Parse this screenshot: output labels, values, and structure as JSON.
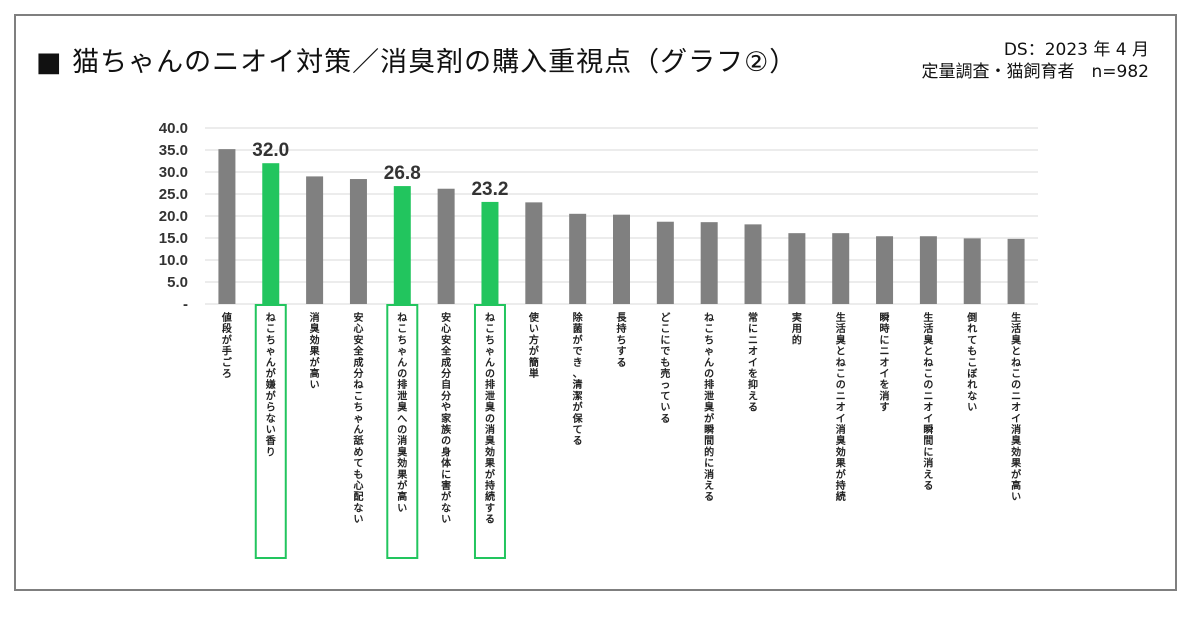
{
  "header": {
    "title": "■ 猫ちゃんのニオイ対策／消臭剤の購入重視点（グラフ②）",
    "source_line1": "DS：2023 年 4 月",
    "source_line2": "定量調査・猫飼育者　n=982"
  },
  "colors": {
    "default_bar": "#808080",
    "highlight_bar": "#22c55e",
    "highlight_box": "#22c55e",
    "gridline": "#d9d9d9"
  },
  "chart_data": {
    "type": "bar",
    "ylim": [
      0,
      40
    ],
    "yticks": [
      "-",
      "5.0",
      "10.0",
      "15.0",
      "20.0",
      "25.0",
      "30.0",
      "35.0",
      "40.0"
    ],
    "grid": true,
    "categories": [
      "値段が手ごろ",
      "ねこちゃんが嫌がらない香り",
      "消臭効果が高い",
      "安心安全成分ねこちゃん舐めても心配ない",
      "ねこちゃんの排泄臭への消臭効果が高い",
      "安心安全成分自分や家族の身体に害がない",
      "ねこちゃんの排泄臭の消臭効果が持続する",
      "使い方が簡単",
      "除菌ができ、清潔が保てる",
      "長持ちする",
      "どこにでも売っている",
      "ねこちゃんの排泄臭が瞬間的に消える",
      "常にニオイを抑える",
      "実用的",
      "生活臭とねこのニオイ消臭効果が持続",
      "瞬時にニオイを消す",
      "生活臭とねこのニオイ瞬間に消える",
      "倒れてもこぼれない",
      "生活臭とねこのニオイ消臭効果が高い"
    ],
    "values": [
      35.2,
      32.0,
      29.0,
      28.4,
      26.8,
      26.2,
      23.2,
      23.1,
      20.5,
      20.3,
      18.7,
      18.6,
      18.1,
      16.1,
      16.1,
      15.4,
      15.4,
      14.9,
      14.8
    ],
    "highlighted": [
      1,
      4,
      6
    ],
    "data_labels": [
      {
        "index": 1,
        "text": "32.0"
      },
      {
        "index": 4,
        "text": "26.8"
      },
      {
        "index": 6,
        "text": "23.2"
      }
    ]
  }
}
